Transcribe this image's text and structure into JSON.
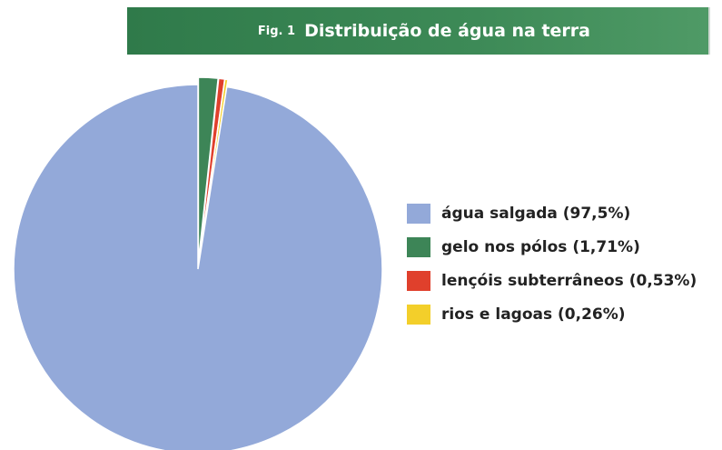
{
  "header": {
    "fig_label": "Fig. 1",
    "title": "Distribuição de água na terra"
  },
  "chart_data": {
    "type": "pie",
    "title": "Distribuição de água na terra",
    "categories": [
      "água salgada",
      "gelo nos pólos",
      "lençóis subterrâneos",
      "rios e lagoas"
    ],
    "values": [
      97.5,
      1.71,
      0.53,
      0.26
    ],
    "colors": [
      "#93a9d9",
      "#3d8557",
      "#e0402c",
      "#f3cf2a"
    ],
    "legend_labels": [
      "água salgada (97,5%)",
      "gelo nos pólos (1,71%)",
      "lençóis subterrâneos (0,53%)",
      "rios e lagoas (0,26%)"
    ],
    "legend_position": "right"
  }
}
